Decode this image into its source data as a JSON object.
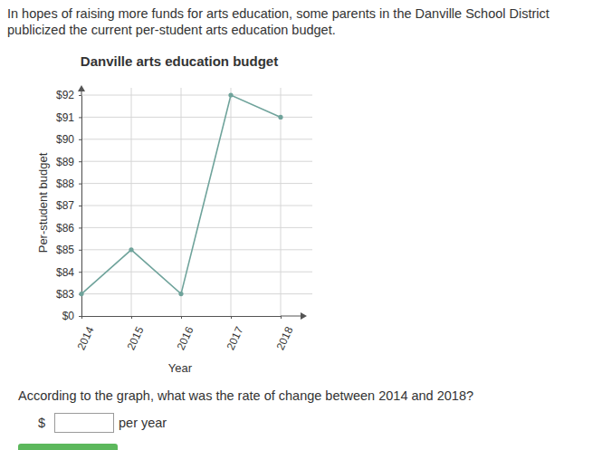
{
  "page": {
    "intro": "In hopes of raising more funds for arts education, some parents in the Danville School District publicized the current per-student arts education budget.",
    "question": "According to the graph, what was the rate of change between 2014 and 2018?",
    "answer_prefix": "$",
    "answer_suffix": "per year"
  },
  "chart_data": {
    "type": "line",
    "title": "Danville arts education budget",
    "x_label": "Year",
    "y_label": "Per-student budget",
    "categories": [
      "2014",
      "2015",
      "2016",
      "2017",
      "2018"
    ],
    "values": [
      83,
      85,
      83,
      92,
      91
    ],
    "color": "#6fa39b",
    "marker": "circle",
    "grid": true,
    "ylim": [
      0,
      92
    ],
    "yticks": [
      {
        "value": 0,
        "label": "$0"
      },
      {
        "value": 83,
        "label": "$83"
      },
      {
        "value": 84,
        "label": "$84"
      },
      {
        "value": 85,
        "label": "$85"
      },
      {
        "value": 86,
        "label": "$86"
      },
      {
        "value": 87,
        "label": "$87"
      },
      {
        "value": 88,
        "label": "$88"
      },
      {
        "value": 89,
        "label": "$89"
      },
      {
        "value": 90,
        "label": "$90"
      },
      {
        "value": 91,
        "label": "$91"
      },
      {
        "value": 92,
        "label": "$92"
      }
    ]
  }
}
